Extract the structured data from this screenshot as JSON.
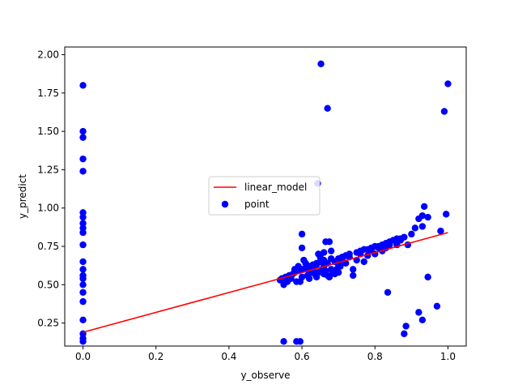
{
  "chart_data": {
    "type": "scatter",
    "xlabel": "y_observe",
    "ylabel": "y_predict",
    "xlim": [
      -0.05,
      1.05
    ],
    "ylim": [
      0.1,
      2.05
    ],
    "x_ticks": [
      0.0,
      0.2,
      0.4,
      0.6,
      0.8,
      1.0
    ],
    "x_tick_labels": [
      "0.0",
      "0.2",
      "0.4",
      "0.6",
      "0.8",
      "1.0"
    ],
    "y_ticks": [
      0.25,
      0.5,
      0.75,
      1.0,
      1.25,
      1.5,
      1.75,
      2.0
    ],
    "y_tick_labels": [
      "0.25",
      "0.50",
      "0.75",
      "1.00",
      "1.25",
      "1.50",
      "1.75",
      "2.00"
    ],
    "grid": false,
    "legend_position": "center",
    "series": [
      {
        "name": "linear_model",
        "kind": "line",
        "color": "#ff0000",
        "x": [
          0.0,
          0.54,
          1.0
        ],
        "y": [
          0.19,
          0.54,
          0.84
        ]
      },
      {
        "name": "point",
        "kind": "scatter",
        "color": "#0000ff",
        "points": [
          [
            0.0,
            1.8
          ],
          [
            0.0,
            1.5
          ],
          [
            0.0,
            1.46
          ],
          [
            0.0,
            1.32
          ],
          [
            0.0,
            1.24
          ],
          [
            0.0,
            0.97
          ],
          [
            0.0,
            0.94
          ],
          [
            0.0,
            0.9
          ],
          [
            0.0,
            0.87
          ],
          [
            0.0,
            0.84
          ],
          [
            0.0,
            0.76
          ],
          [
            0.0,
            0.65
          ],
          [
            0.0,
            0.6
          ],
          [
            0.0,
            0.56
          ],
          [
            0.0,
            0.54
          ],
          [
            0.0,
            0.5
          ],
          [
            0.0,
            0.45
          ],
          [
            0.0,
            0.39
          ],
          [
            0.0,
            0.27
          ],
          [
            0.0,
            0.18
          ],
          [
            0.0,
            0.15
          ],
          [
            0.0,
            0.13
          ],
          [
            0.652,
            1.94
          ],
          [
            0.67,
            1.65
          ],
          [
            0.643,
            1.16
          ],
          [
            1.0,
            1.81
          ],
          [
            0.99,
            1.63
          ],
          [
            0.55,
            0.13
          ],
          [
            0.585,
            0.13
          ],
          [
            0.595,
            0.13
          ],
          [
            0.6,
            0.83
          ],
          [
            0.6,
            0.74
          ],
          [
            0.645,
            0.7
          ],
          [
            0.665,
            0.78
          ],
          [
            0.675,
            0.78
          ],
          [
            0.68,
            0.72
          ],
          [
            0.66,
            0.71
          ],
          [
            0.54,
            0.53
          ],
          [
            0.545,
            0.54
          ],
          [
            0.55,
            0.5
          ],
          [
            0.555,
            0.55
          ],
          [
            0.56,
            0.55
          ],
          [
            0.565,
            0.56
          ],
          [
            0.57,
            0.56
          ],
          [
            0.575,
            0.57
          ],
          [
            0.58,
            0.58
          ],
          [
            0.585,
            0.52
          ],
          [
            0.59,
            0.59
          ],
          [
            0.595,
            0.52
          ],
          [
            0.6,
            0.6
          ],
          [
            0.605,
            0.66
          ],
          [
            0.61,
            0.61
          ],
          [
            0.615,
            0.56
          ],
          [
            0.62,
            0.62
          ],
          [
            0.625,
            0.58
          ],
          [
            0.63,
            0.63
          ],
          [
            0.635,
            0.57
          ],
          [
            0.64,
            0.64
          ],
          [
            0.645,
            0.58
          ],
          [
            0.65,
            0.65
          ],
          [
            0.655,
            0.6
          ],
          [
            0.66,
            0.66
          ],
          [
            0.665,
            0.59
          ],
          [
            0.67,
            0.56
          ],
          [
            0.675,
            0.55
          ],
          [
            0.68,
            0.67
          ],
          [
            0.685,
            0.58
          ],
          [
            0.69,
            0.57
          ],
          [
            0.695,
            0.6
          ],
          [
            0.7,
            0.67
          ],
          [
            0.705,
            0.62
          ],
          [
            0.71,
            0.68
          ],
          [
            0.72,
            0.69
          ],
          [
            0.73,
            0.7
          ],
          [
            0.74,
            0.56
          ],
          [
            0.75,
            0.71
          ],
          [
            0.76,
            0.72
          ],
          [
            0.77,
            0.73
          ],
          [
            0.78,
            0.73
          ],
          [
            0.79,
            0.74
          ],
          [
            0.8,
            0.75
          ],
          [
            0.81,
            0.75
          ],
          [
            0.82,
            0.76
          ],
          [
            0.83,
            0.77
          ],
          [
            0.84,
            0.78
          ],
          [
            0.85,
            0.79
          ],
          [
            0.86,
            0.8
          ],
          [
            0.87,
            0.8
          ],
          [
            0.88,
            0.81
          ],
          [
            0.89,
            0.76
          ],
          [
            0.9,
            0.83
          ],
          [
            0.91,
            0.87
          ],
          [
            0.92,
            0.93
          ],
          [
            0.93,
            0.88
          ],
          [
            0.93,
            0.95
          ],
          [
            0.935,
            1.01
          ],
          [
            0.945,
            0.94
          ],
          [
            0.98,
            0.85
          ],
          [
            0.995,
            0.96
          ],
          [
            0.835,
            0.45
          ],
          [
            0.88,
            0.18
          ],
          [
            0.885,
            0.23
          ],
          [
            0.92,
            0.32
          ],
          [
            0.93,
            0.27
          ],
          [
            0.945,
            0.55
          ],
          [
            0.97,
            0.36
          ],
          [
            0.6,
            0.55
          ],
          [
            0.62,
            0.54
          ],
          [
            0.64,
            0.63
          ],
          [
            0.66,
            0.62
          ],
          [
            0.7,
            0.63
          ],
          [
            0.72,
            0.64
          ],
          [
            0.75,
            0.66
          ],
          [
            0.78,
            0.69
          ],
          [
            0.82,
            0.72
          ],
          [
            0.86,
            0.76
          ],
          [
            0.58,
            0.6
          ],
          [
            0.59,
            0.62
          ],
          [
            0.61,
            0.64
          ],
          [
            0.63,
            0.6
          ],
          [
            0.65,
            0.68
          ],
          [
            0.67,
            0.64
          ],
          [
            0.69,
            0.65
          ],
          [
            0.71,
            0.66
          ],
          [
            0.73,
            0.68
          ],
          [
            0.76,
            0.7
          ],
          [
            0.79,
            0.72
          ],
          [
            0.81,
            0.74
          ],
          [
            0.84,
            0.76
          ],
          [
            0.87,
            0.79
          ],
          [
            0.56,
            0.52
          ],
          [
            0.57,
            0.54
          ],
          [
            0.62,
            0.58
          ],
          [
            0.64,
            0.55
          ],
          [
            0.66,
            0.57
          ],
          [
            0.68,
            0.6
          ],
          [
            0.7,
            0.58
          ],
          [
            0.74,
            0.6
          ],
          [
            0.77,
            0.65
          ],
          [
            0.8,
            0.7
          ],
          [
            0.83,
            0.74
          ]
        ]
      }
    ]
  }
}
